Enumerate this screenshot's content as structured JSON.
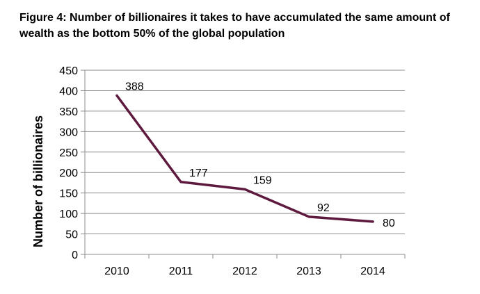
{
  "figure_title": "Figure 4: Number of billionaires it takes to have accumulated the same amount of wealth as the bottom 50% of the global population",
  "chart_data": {
    "type": "line",
    "title": "Figure 4: Number of billionaires it takes to have accumulated the same amount of wealth as the bottom 50% of the global population",
    "xlabel": "",
    "ylabel": "Number of billionaires",
    "categories": [
      "2010",
      "2011",
      "2012",
      "2013",
      "2014"
    ],
    "series": [
      {
        "values": [
          388,
          177,
          159,
          92,
          80
        ],
        "color": "#5e1a3e"
      }
    ],
    "data_labels": [
      "388",
      "177",
      "159",
      "92",
      "80"
    ],
    "ylim": [
      0,
      450
    ],
    "yticks": [
      0,
      50,
      100,
      150,
      200,
      250,
      300,
      350,
      400,
      450
    ],
    "grid": true,
    "legend": "none",
    "gridline_color": "#8c8c8c"
  }
}
